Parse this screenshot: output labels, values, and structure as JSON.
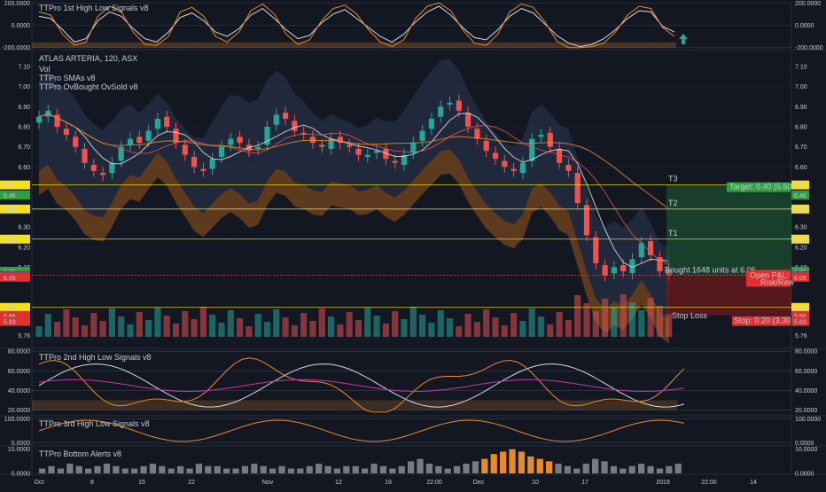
{
  "chart_data": [
    {
      "type": "line",
      "title": "TTPro 1st High Low Signals v8",
      "yticks": [
        "200.0000",
        "0.0000",
        "-200.0000"
      ],
      "ylim": [
        -210,
        210
      ],
      "series": [
        {
          "color": "#d4dbe8",
          "values": [
            80,
            60,
            -40,
            -150,
            -120,
            40,
            120,
            80,
            -30,
            -120,
            -150,
            -60,
            70,
            110,
            40,
            -60,
            -100,
            -30,
            90,
            150,
            60,
            -40,
            -120,
            -90,
            20,
            100,
            140,
            60,
            -20,
            -100,
            -150,
            -80,
            30,
            120,
            170,
            90,
            -20,
            -110,
            -130,
            -40,
            80,
            150,
            110,
            10,
            -90,
            -160,
            -190,
            -170,
            -120,
            -40,
            60,
            130,
            120,
            -10,
            -60
          ]
        },
        {
          "color": "#e88a2c",
          "values": [
            120,
            90,
            -80,
            -180,
            -150,
            80,
            170,
            120,
            -60,
            -170,
            -180,
            -100,
            120,
            160,
            80,
            -100,
            -150,
            -60,
            130,
            190,
            100,
            -80,
            -170,
            -130,
            40,
            150,
            180,
            100,
            -40,
            -150,
            -190,
            -130,
            60,
            170,
            200,
            130,
            -40,
            -160,
            -180,
            -80,
            120,
            190,
            160,
            30,
            -140,
            -200,
            -200,
            -190,
            -160,
            -60,
            90,
            170,
            150,
            -20,
            -100
          ]
        }
      ]
    },
    {
      "type": "line",
      "title": "ATLAS ARTERIA, 120, ASX",
      "indicators": [
        "Vol",
        "TTPro SMAs v8",
        "TTPro OvBought OvSold v8"
      ],
      "yticks": [
        "7.10",
        "7.00",
        "6.90",
        "6.80",
        "6.70",
        "6.60",
        "6.30",
        "6.20",
        "6.10",
        "5.76"
      ],
      "ylim": [
        5.7,
        7.18
      ],
      "x_labels": [
        "Oct",
        "8",
        "15",
        "22",
        "Nov",
        "12",
        "19",
        "22:00",
        "Dec",
        "10",
        "17",
        "2019",
        "22:00",
        "14"
      ],
      "price_labels": [
        {
          "text": "6.51",
          "color": "#f5e11b",
          "text_color": "#000000"
        },
        {
          "text": "6.46",
          "color": "#2ea043",
          "text_color": "#000000"
        },
        {
          "text": "6.39",
          "color": "#f5e11b",
          "text_color": "#000000"
        },
        {
          "text": "6.24",
          "color": "#f5e11b",
          "text_color": "#000000"
        },
        {
          "text": "6.06",
          "color": "#2ea043",
          "text_color": "#ffffff"
        },
        {
          "text": "6.06",
          "color": "#555b66",
          "text_color": "#ffffff"
        },
        {
          "text": "6.05",
          "color": "#e03131",
          "text_color": "#ffffff"
        },
        {
          "text": "5.90",
          "color": "#f5e11b",
          "text_color": "#000000"
        },
        {
          "text": "5.86",
          "color": "#e03131",
          "text_color": "#ffffff"
        },
        {
          "text": "5.83",
          "color": "#e03131",
          "text_color": "#ffffff"
        }
      ],
      "trade_labels": {
        "t3": "T3",
        "t2": "T2",
        "t1": "T1",
        "entry": "Bought 1648 units at 6.06",
        "stop": "Stop Loss",
        "target": "Target: 0.40 (6.60",
        "openpl": "Open P&L:",
        "riskrew": "Risk/Rew",
        "stopbox": "Stop: 0.20 (3.30"
      },
      "close": [
        6.85,
        6.88,
        6.8,
        6.76,
        6.7,
        6.62,
        6.58,
        6.56,
        6.62,
        6.7,
        6.74,
        6.72,
        6.78,
        6.84,
        6.8,
        6.72,
        6.66,
        6.6,
        6.58,
        6.64,
        6.7,
        6.74,
        6.72,
        6.68,
        6.7,
        6.8,
        6.86,
        6.84,
        6.78,
        6.76,
        6.72,
        6.7,
        6.74,
        6.72,
        6.7,
        6.66,
        6.66,
        6.68,
        6.64,
        6.62,
        6.66,
        6.72,
        6.78,
        6.84,
        6.9,
        6.92,
        6.88,
        6.8,
        6.74,
        6.68,
        6.64,
        6.6,
        6.58,
        6.62,
        6.74,
        6.76,
        6.7,
        6.62,
        6.58,
        6.42,
        6.26,
        6.12,
        6.06,
        6.1,
        6.08,
        6.14,
        6.22,
        6.16,
        6.08,
        6.06
      ],
      "open": [
        6.82,
        6.85,
        6.86,
        6.79,
        6.75,
        6.69,
        6.61,
        6.57,
        6.57,
        6.63,
        6.71,
        6.75,
        6.73,
        6.79,
        6.85,
        6.79,
        6.71,
        6.65,
        6.59,
        6.59,
        6.65,
        6.71,
        6.75,
        6.71,
        6.69,
        6.71,
        6.81,
        6.87,
        6.83,
        6.77,
        6.75,
        6.71,
        6.69,
        6.75,
        6.71,
        6.69,
        6.65,
        6.67,
        6.69,
        6.63,
        6.61,
        6.67,
        6.73,
        6.79,
        6.85,
        6.91,
        6.93,
        6.87,
        6.79,
        6.73,
        6.67,
        6.63,
        6.59,
        6.57,
        6.63,
        6.75,
        6.77,
        6.69,
        6.61,
        6.57,
        6.41,
        6.25,
        6.11,
        6.07,
        6.11,
        6.07,
        6.15,
        6.23,
        6.15,
        6.09
      ]
    },
    {
      "type": "line",
      "title": "TTPro 2nd High Low Signals v8",
      "yticks": [
        "80.0000",
        "60.0000",
        "40.0000",
        "20.0000"
      ],
      "ylim": [
        15,
        82
      ]
    },
    {
      "type": "line",
      "title": "TTPro 3rd High Low Signals v8",
      "yticks": [
        "100.0000",
        "0.0000"
      ],
      "ylim": [
        -10,
        110
      ]
    },
    {
      "type": "bar",
      "title": "TTPro Bottom Alerts v8",
      "yticks": [
        "10.0000",
        "0.0000"
      ],
      "ylim": [
        0,
        11
      ],
      "values": [
        2,
        3,
        2,
        4,
        3,
        2,
        3,
        4,
        3,
        2,
        2,
        3,
        4,
        3,
        2,
        3,
        2,
        4,
        3,
        3,
        2,
        2,
        3,
        4,
        3,
        2,
        3,
        2,
        2,
        3,
        4,
        3,
        2,
        3,
        3,
        2,
        4,
        3,
        2,
        3,
        5,
        6,
        4,
        3,
        2,
        3,
        4,
        5,
        6,
        8,
        9,
        10,
        9,
        7,
        6,
        5,
        4,
        3,
        2,
        4,
        6,
        5,
        3,
        2,
        3,
        4,
        3,
        2,
        3,
        4
      ],
      "highlight_range": [
        48,
        55
      ]
    }
  ]
}
